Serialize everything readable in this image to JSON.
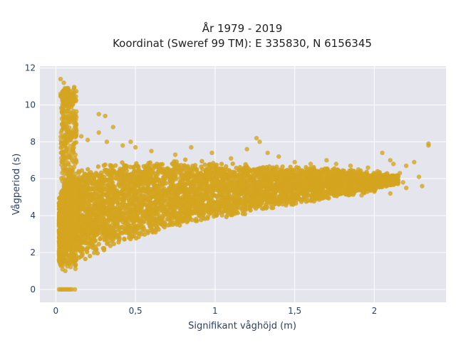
{
  "chart_data": {
    "type": "scatter",
    "title_line1": "År 1979 - 2019",
    "title_line2": "Koordinat (Sweref 99 TM): E 335830, N 6156345",
    "xlabel": "Signifikant våghöjd (m)",
    "ylabel": "Vågperiod (s)",
    "xlim": [
      -0.1,
      2.45
    ],
    "ylim": [
      -0.7,
      12.1
    ],
    "x_ticks": [
      0,
      0.5,
      1,
      1.5,
      2
    ],
    "x_tick_labels": [
      "0",
      "0,5",
      "1",
      "1,5",
      "2"
    ],
    "y_ticks": [
      0,
      2,
      4,
      6,
      8,
      10,
      12
    ],
    "y_tick_labels": [
      "0",
      "2",
      "4",
      "6",
      "8",
      "10",
      "12"
    ],
    "grid": true,
    "marker_color": "#d4a520",
    "plot_background": "#e5e5ee",
    "points": [
      [
        0.03,
        11.4
      ],
      [
        0.05,
        11.2
      ],
      [
        0.07,
        10.9
      ],
      [
        0.03,
        10.6
      ],
      [
        0.08,
        10.2
      ],
      [
        0.05,
        9.9
      ],
      [
        0.09,
        9.6
      ],
      [
        0.1,
        9.3
      ],
      [
        0.06,
        9.0
      ],
      [
        0.12,
        8.8
      ],
      [
        0.08,
        8.5
      ],
      [
        0.13,
        8.6
      ],
      [
        0.16,
        8.3
      ],
      [
        0.2,
        8.1
      ],
      [
        0.27,
        8.5
      ],
      [
        0.31,
        9.4
      ],
      [
        0.27,
        9.5
      ],
      [
        0.36,
        8.8
      ],
      [
        0.32,
        8.0
      ],
      [
        0.42,
        7.8
      ],
      [
        0.5,
        7.7
      ],
      [
        0.47,
        8.0
      ],
      [
        0.6,
        7.5
      ],
      [
        0.75,
        7.3
      ],
      [
        0.85,
        7.7
      ],
      [
        0.98,
        7.4
      ],
      [
        1.1,
        7.1
      ],
      [
        1.2,
        7.6
      ],
      [
        1.26,
        8.2
      ],
      [
        1.28,
        8.0
      ],
      [
        1.33,
        7.4
      ],
      [
        1.4,
        7.2
      ],
      [
        1.5,
        6.9
      ],
      [
        1.6,
        6.8
      ],
      [
        1.7,
        7.0
      ],
      [
        1.76,
        6.8
      ],
      [
        1.85,
        6.7
      ],
      [
        1.9,
        6.5
      ],
      [
        1.96,
        6.6
      ],
      [
        2.02,
        6.4
      ],
      [
        2.05,
        7.4
      ],
      [
        2.1,
        7.0
      ],
      [
        2.12,
        6.8
      ],
      [
        2.16,
        6.3
      ],
      [
        2.2,
        6.7
      ],
      [
        2.25,
        6.9
      ],
      [
        2.28,
        6.1
      ],
      [
        2.3,
        5.6
      ],
      [
        2.34,
        7.9
      ],
      [
        2.34,
        7.8
      ],
      [
        2.2,
        5.5
      ],
      [
        2.1,
        5.2
      ],
      [
        2.0,
        5.3
      ],
      [
        1.92,
        5.1
      ],
      [
        1.88,
        5.6
      ],
      [
        2.18,
        5.8
      ],
      [
        1.8,
        5.4
      ],
      [
        1.7,
        5.0
      ],
      [
        0.02,
        0.0
      ],
      [
        0.04,
        0.0
      ],
      [
        0.06,
        0.0
      ],
      [
        0.08,
        0.0
      ],
      [
        0.1,
        0.0
      ],
      [
        0.12,
        0.0
      ],
      [
        0.03,
        0.0
      ],
      [
        0.05,
        0.0
      ],
      [
        0.07,
        0.0
      ],
      [
        0.09,
        0.0
      ]
    ],
    "dense_band": [
      [
        0.02,
        1.1,
        5.2
      ],
      [
        0.08,
        1.1,
        6.6
      ],
      [
        0.15,
        1.4,
        6.6
      ],
      [
        0.25,
        1.8,
        6.8
      ],
      [
        0.4,
        2.3,
        7.0
      ],
      [
        0.6,
        2.9,
        7.1
      ],
      [
        0.8,
        3.4,
        7.1
      ],
      [
        1.0,
        3.8,
        7.0
      ],
      [
        1.2,
        4.1,
        6.8
      ],
      [
        1.4,
        4.4,
        6.8
      ],
      [
        1.6,
        4.7,
        6.7
      ],
      [
        1.8,
        5.0,
        6.6
      ],
      [
        2.0,
        5.3,
        6.4
      ],
      [
        2.15,
        5.7,
        6.2
      ]
    ],
    "spike": [
      0.03,
      0.13,
      1.0,
      11.0
    ]
  }
}
